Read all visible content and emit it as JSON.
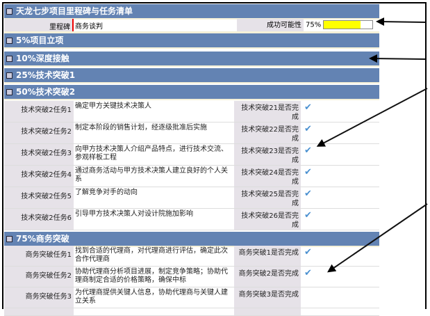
{
  "title": "天龙七步项目里程碑与任务清单",
  "milestone": {
    "label": "里程碑",
    "value": "商务谈判",
    "success_label": "成功可能性",
    "success_value": "75%",
    "success_percent": 75,
    "bar_color": "#ffff00"
  },
  "sections": [
    "5%项目立项",
    "10%深度接触",
    "25%技术突破1",
    "50%技术突破2",
    "75%商务突破"
  ],
  "tech2_tasks": [
    {
      "label": "技术突破2任务1",
      "desc": "确定甲方关键技术决策人",
      "done_label": "技术突破21是否完成",
      "done": true
    },
    {
      "label": "技术突破2任务2",
      "desc": "制定本阶段的销售计划，经逐级批准后实施",
      "done_label": "技术突破22是否完成",
      "done": true
    },
    {
      "label": "技术突破2任务3",
      "desc": "向甲方技术决策人介绍产品特点，进行技术交流、参观样板工程",
      "done_label": "技术突破23是否完成",
      "done": true
    },
    {
      "label": "技术突破2任务4",
      "desc": "通过商务活动与甲方技术决策人建立良好的个人关系",
      "done_label": "技术突破24是否完成",
      "done": true
    },
    {
      "label": "技术突破2任务5",
      "desc": "了解竞争对手的动向",
      "done_label": "技术突破25是否完成",
      "done": true
    },
    {
      "label": "技术突破2任务6",
      "desc": "引导甲方技术决策人对设计院施加影响",
      "done_label": "技术突破26是否完成",
      "done": true
    }
  ],
  "biz_tasks": [
    {
      "label": "商务突破任务1",
      "desc": "找到合适的代理商，对代理商进行评估，确定此次合作代理商",
      "done_label": "商务突破1是否完成",
      "done": true
    },
    {
      "label": "商务突破任务2",
      "desc": "协助代理商分析项目进展，制定竞争策略；协助代理商制定合适的价格策略，确保中标",
      "done_label": "商务突破2是否完成",
      "done": true
    },
    {
      "label": "商务突破任务3",
      "desc": "为代理商提供关键人信息，协助代理商与关键人建立关系",
      "done_label": "商务突破3是否完成",
      "done": false
    }
  ],
  "colors": {
    "header": "#6383b3",
    "label_bg": "#e6e2e8",
    "check": "#4a90d0"
  }
}
